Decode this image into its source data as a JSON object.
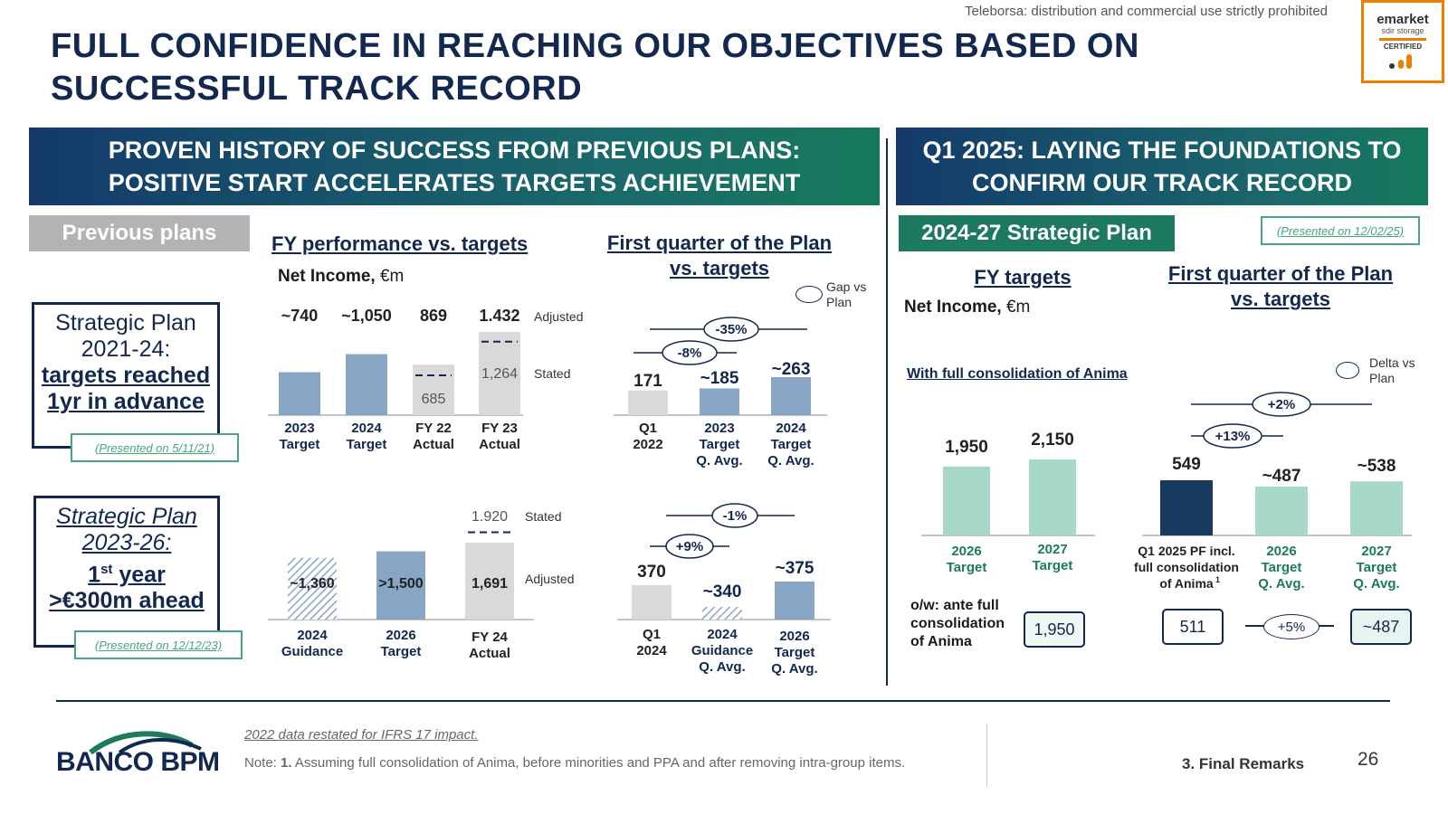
{
  "watermark": "Teleborsa: distribution and commercial use strictly prohibited",
  "emarket": {
    "name": "emarket",
    "sub": "sdir storage",
    "cert": "CERTIFIED"
  },
  "title": "FULL CONFIDENCE IN REACHING OUR OBJECTIVES BASED ON SUCCESSFUL TRACK RECORD",
  "left_header_line1": "PROVEN HISTORY OF SUCCESS FROM PREVIOUS PLANS:",
  "left_header_line2": "POSITIVE START ACCELERATES TARGETS ACHIEVEMENT",
  "right_header_line1": "Q1 2025: LAYING THE FOUNDATIONS TO",
  "right_header_line2": "CONFIRM OUR TRACK RECORD",
  "previous_plans": "Previous plans",
  "strategic_plan_tag": "2024-27 Strategic Plan",
  "presented_right": "(Presented on 12/02/25)",
  "fy_perf_title": "FY performance vs. targets",
  "net_income_bold": "Net Income,",
  "net_income_unit": " €m",
  "first_q_line1": "First quarter of the Plan",
  "first_q_line2": "vs. targets",
  "gap_legend": "Gap vs Plan",
  "delta_legend": "Delta vs Plan",
  "fy_targets": "FY targets",
  "anima_label": "With full consolidation of Anima",
  "plan1": {
    "l1": "Strategic Plan",
    "l2": "2021-24:",
    "l3": "targets reached",
    "l4": "1yr in advance",
    "presented": "(Presented on 5/11/21)"
  },
  "plan2": {
    "l1": "Strategic Plan",
    "l2": "2023-26:",
    "l3a": "1",
    "l3sup": "st",
    "l3b": " year",
    "l4": ">€300m ahead",
    "presented": "(Presented on 12/12/23)"
  },
  "chart_data": [
    {
      "type": "bar",
      "name": "fy21_24",
      "categories": [
        "2023 Target",
        "2024 Target",
        "FY 22 Actual",
        "FY 23 Actual"
      ],
      "labels_top": [
        "~740",
        "~1,050",
        "869",
        "1.432"
      ],
      "values": [
        740,
        1050,
        869,
        1432
      ],
      "stated": [
        null,
        null,
        685,
        1264
      ],
      "annot": {
        "adjusted": "Adjusted",
        "stated": "Stated",
        "stated_val1": "685",
        "stated_val2": "1,264"
      }
    },
    {
      "type": "bar",
      "name": "q1_2022",
      "categories": [
        "Q1 2022",
        "2023 Target Q. Avg.",
        "2024 Target Q. Avg."
      ],
      "labels_top": [
        "171",
        "~185",
        "~263"
      ],
      "values": [
        171,
        185,
        263
      ],
      "deltas": [
        "-8%",
        "-35%"
      ]
    },
    {
      "type": "bar",
      "name": "fy23_26",
      "categories": [
        "2024 Guidance",
        "2026 Target",
        "FY 24 Actual"
      ],
      "labels_in": [
        "~1,360",
        ">1,500",
        "1,691"
      ],
      "values": [
        1360,
        1500,
        1691
      ],
      "stated": [
        null,
        null,
        1920
      ],
      "annot": {
        "stated_val": "1.920",
        "stated": "Stated",
        "adjusted": "Adjusted"
      }
    },
    {
      "type": "bar",
      "name": "q1_2024",
      "categories": [
        "Q1 2024",
        "2024 Guidance Q. Avg.",
        "2026 Target Q. Avg."
      ],
      "labels_top": [
        "370",
        "~340",
        "~375"
      ],
      "values": [
        370,
        340,
        375
      ],
      "deltas": [
        "+9%",
        "-1%"
      ]
    },
    {
      "type": "bar",
      "name": "fy_targets_24_27",
      "categories": [
        "2026 Target",
        "2027 Target"
      ],
      "labels_top": [
        "1,950",
        "2,150"
      ],
      "values": [
        1950,
        2150
      ]
    },
    {
      "type": "bar",
      "name": "q1_2025",
      "categories": [
        "Q1 2025 PF incl. full consolidation of Anima",
        "2026 Target Q. Avg.",
        "2027 Target Q. Avg."
      ],
      "footnote_mark": "1",
      "labels_top": [
        "549",
        "~487",
        "~538"
      ],
      "values": [
        549,
        487,
        538
      ],
      "deltas": [
        "+13%",
        "+2%"
      ]
    }
  ],
  "ante": {
    "label": "o/w: ante full consolidation of Anima",
    "val1950": "1,950",
    "val511": "511",
    "delta": "+5%",
    "val487": "~487"
  },
  "footer": {
    "bank": "BANCO BPM",
    "restated": "2022 data restated for IFRS 17 impact.",
    "note_prefix": "Note: ",
    "note_num": "1.",
    "note_text": " Assuming full consolidation of Anima, before minorities and PPA and after removing intra-group items.",
    "section": "3. Final Remarks",
    "page": "26"
  },
  "colors": {
    "navy": "#13284f",
    "steel": "#88a6c4",
    "grey": "#d9d9d9",
    "mint": "#a8d8c6",
    "darknavy": "#173b5e",
    "green": "#1d7a5e"
  }
}
